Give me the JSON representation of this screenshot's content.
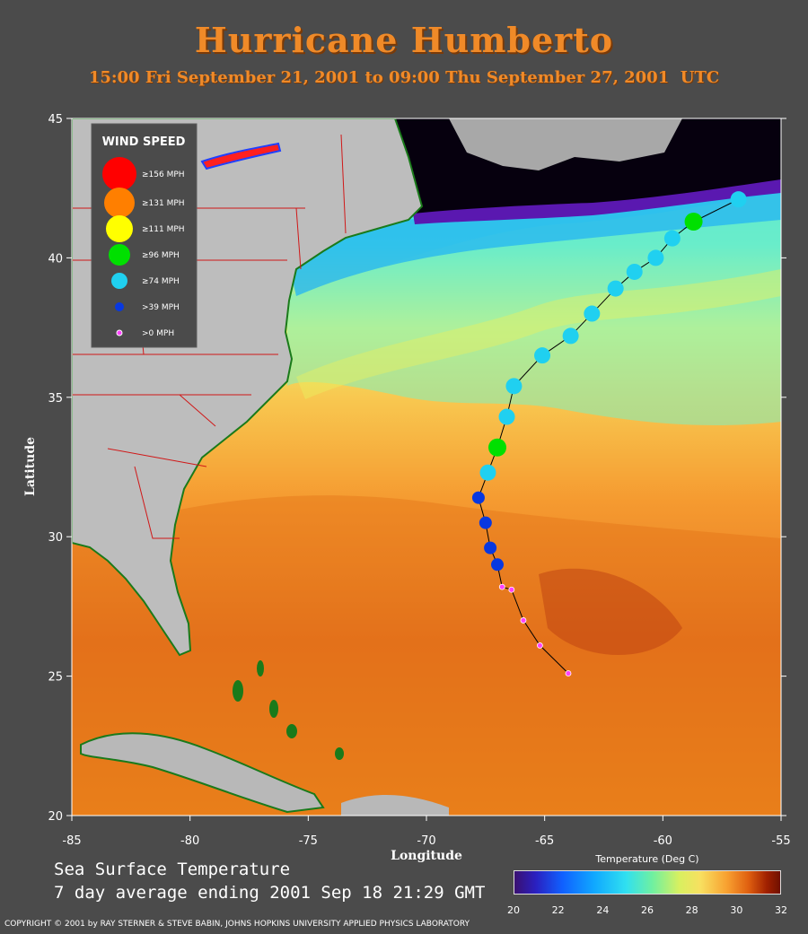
{
  "title": "Hurricane Humberto",
  "subtitle": "15:00 Fri September 21, 2001 to 09:00 Thu September 27, 2001  UTC",
  "axes": {
    "xlabel": "Longitude",
    "ylabel": "Latitude",
    "x_ticks": [
      "-85",
      "-80",
      "-75",
      "-70",
      "-65",
      "-60",
      "-55"
    ],
    "y_ticks": [
      "45",
      "40",
      "35",
      "30",
      "25",
      "20"
    ],
    "xlim": [
      -85,
      -55
    ],
    "ylim": [
      20,
      45
    ]
  },
  "legend": {
    "title": "WIND SPEED",
    "items": [
      {
        "label": "≥156 MPH",
        "color": "#ff0000"
      },
      {
        "label": "≥131 MPH",
        "color": "#ff7f00"
      },
      {
        "label": "≥111 MPH",
        "color": "#ffff00"
      },
      {
        "label": "≥96 MPH",
        "color": "#00e000"
      },
      {
        "label": "≥74 MPH",
        "color": "#20d0f0"
      },
      {
        "label": ">39 MPH",
        "color": "#0838e0"
      },
      {
        "label": ">0 MPH",
        "color": "#ff40ff"
      }
    ]
  },
  "caption": {
    "line1": "Sea Surface Temperature",
    "line2": "7 day average ending 2001 Sep 18 21:29 GMT"
  },
  "colorbar": {
    "title": "Temperature (Deg C)",
    "ticks": [
      "20",
      "22",
      "24",
      "26",
      "28",
      "30",
      "32"
    ]
  },
  "copyright": "COPYRIGHT © 2001 by RAY STERNER & STEVE BABIN, JOHNS HOPKINS UNIVERSITY APPLIED PHYSICS LABORATORY",
  "chart_data": {
    "type": "scatter",
    "title": "Hurricane Humberto",
    "xlabel": "Longitude",
    "ylabel": "Latitude",
    "xlim": [
      -85,
      -55
    ],
    "ylim": [
      20,
      45
    ],
    "track": [
      {
        "lon": -64.0,
        "lat": 25.1,
        "cat": "td"
      },
      {
        "lon": -65.2,
        "lat": 26.1,
        "cat": "td"
      },
      {
        "lon": -65.9,
        "lat": 27.0,
        "cat": "td"
      },
      {
        "lon": -66.4,
        "lat": 28.1,
        "cat": "td"
      },
      {
        "lon": -66.8,
        "lat": 28.2,
        "cat": "td"
      },
      {
        "lon": -67.0,
        "lat": 29.0,
        "cat": "ts"
      },
      {
        "lon": -67.3,
        "lat": 29.6,
        "cat": "ts"
      },
      {
        "lon": -67.5,
        "lat": 30.5,
        "cat": "ts"
      },
      {
        "lon": -67.8,
        "lat": 31.4,
        "cat": "ts"
      },
      {
        "lon": -67.4,
        "lat": 32.3,
        "cat": "h1"
      },
      {
        "lon": -67.0,
        "lat": 33.2,
        "cat": "h2"
      },
      {
        "lon": -66.6,
        "lat": 34.3,
        "cat": "h1"
      },
      {
        "lon": -66.3,
        "lat": 35.4,
        "cat": "h1"
      },
      {
        "lon": -65.1,
        "lat": 36.5,
        "cat": "h1"
      },
      {
        "lon": -63.9,
        "lat": 37.2,
        "cat": "h1"
      },
      {
        "lon": -63.0,
        "lat": 38.0,
        "cat": "h1"
      },
      {
        "lon": -62.0,
        "lat": 38.9,
        "cat": "h1"
      },
      {
        "lon": -61.2,
        "lat": 39.5,
        "cat": "h1"
      },
      {
        "lon": -60.3,
        "lat": 40.0,
        "cat": "h1"
      },
      {
        "lon": -59.6,
        "lat": 40.7,
        "cat": "h1"
      },
      {
        "lon": -58.7,
        "lat": 41.3,
        "cat": "h2"
      },
      {
        "lon": -56.8,
        "lat": 42.1,
        "cat": "h1"
      }
    ]
  }
}
